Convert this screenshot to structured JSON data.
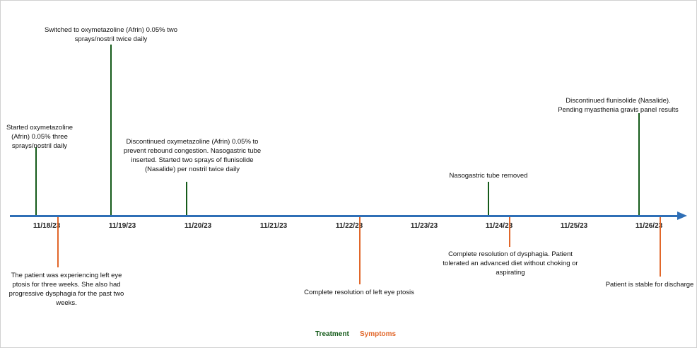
{
  "dates": [
    "11/18/23",
    "11/19/23",
    "11/20/23",
    "11/21/23",
    "11/22/23",
    "11/23/23",
    "11/24/23",
    "11/25/23",
    "11/26/23"
  ],
  "treatments": [
    {
      "date": "11/18/23",
      "text": "Started oxymetazoline (Afrin) 0.05% three sprays/nostril daily"
    },
    {
      "date": "11/19/23",
      "text": "Switched to oxymetazoline (Afrin) 0.05% two sprays/nostril twice daily"
    },
    {
      "date": "11/20/23",
      "text": "Discontinued oxymetazoline (Afrin) 0.05% to prevent rebound congestion. Nasogastric tube inserted. Started two sprays of flunisolide (Nasalide) per nostril twice daily"
    },
    {
      "date": "11/24/23",
      "text": "Nasogastric tube removed"
    },
    {
      "date": "11/26/23",
      "text": "Discontinued flunisolide (Nasalide). Pending myasthenia gravis panel results"
    }
  ],
  "symptoms": [
    {
      "date": "11/18/23",
      "text": "The patient was experiencing left eye ptosis for three weeks. She also had progressive dysphagia for the past two weeks."
    },
    {
      "date": "11/22/23",
      "text": "Complete resolution of left eye ptosis"
    },
    {
      "date": "11/24/23",
      "text": "Complete resolution of dysphagia. Patient tolerated an advanced diet without choking or aspirating"
    },
    {
      "date": "11/26/23",
      "text": "Patient is stable for discharge"
    }
  ],
  "legend": {
    "treatment": "Treatment",
    "symptoms": "Symptoms"
  },
  "colors": {
    "axis": "#2f6fb6",
    "treatment": "#155b1a",
    "symptoms": "#e1672a"
  }
}
